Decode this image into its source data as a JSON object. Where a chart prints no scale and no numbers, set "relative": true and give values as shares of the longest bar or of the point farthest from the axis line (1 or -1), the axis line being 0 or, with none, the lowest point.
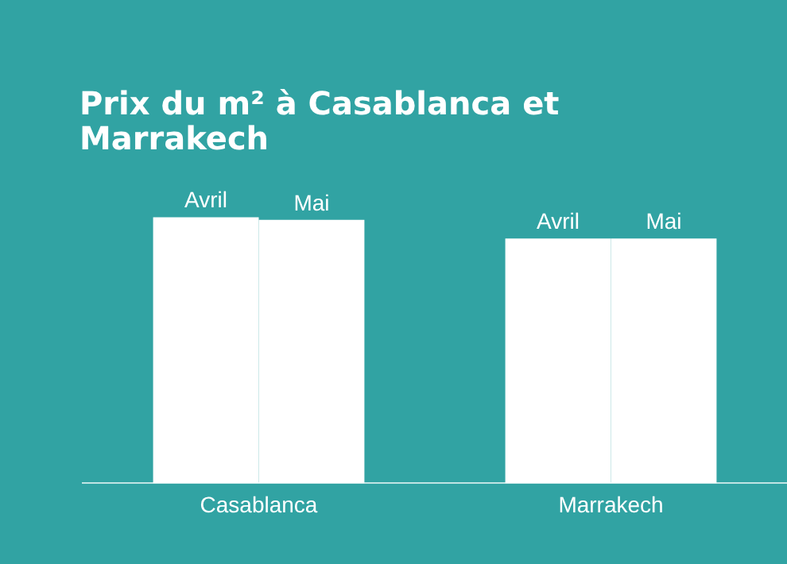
{
  "chart_data": {
    "type": "bar",
    "title": "Prix du m² à Casablanca et Marrakech",
    "categories": [
      "Casablanca",
      "Marrakech"
    ],
    "relative": true,
    "grid": false,
    "legend": false,
    "series": [
      {
        "name": "Avril",
        "color": "#ffffff",
        "values": [
          1,
          0.92
        ]
      },
      {
        "name": "Mai",
        "color": "#ffffff",
        "values": [
          0.99,
          0.92
        ]
      }
    ]
  }
}
